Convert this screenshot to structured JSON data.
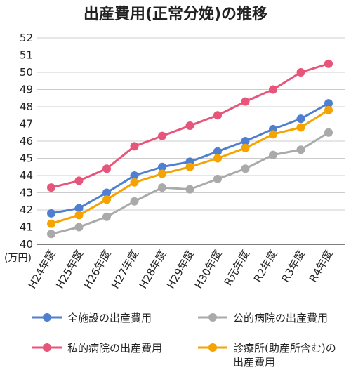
{
  "chart_data": {
    "type": "line",
    "title": "出産費用(正常分娩)の推移",
    "unit_label": "(万円)",
    "ylim": [
      40,
      52
    ],
    "yticks": [
      40,
      41,
      42,
      43,
      44,
      45,
      46,
      47,
      48,
      49,
      50,
      51,
      52
    ],
    "grid": true,
    "legend_position": "bottom",
    "categories": [
      "H24年度",
      "H25年度",
      "H26年度",
      "H27年度",
      "H28年度",
      "H29年度",
      "H30年度",
      "R元年度",
      "R2年度",
      "R3年度",
      "R4年度"
    ],
    "series": [
      {
        "name": "全施設の出産費用",
        "color": "#4f7fd0",
        "values": [
          41.8,
          42.1,
          43.0,
          44.0,
          44.5,
          44.8,
          45.4,
          46.0,
          46.7,
          47.3,
          48.2
        ]
      },
      {
        "name": "公的病院の出産費用",
        "color": "#aaaaaa",
        "values": [
          40.6,
          41.0,
          41.6,
          42.5,
          43.3,
          43.2,
          43.8,
          44.4,
          45.2,
          45.5,
          46.5
        ]
      },
      {
        "name": "私的病院の出産費用",
        "color": "#e8557a",
        "values": [
          43.3,
          43.7,
          44.4,
          45.7,
          46.3,
          46.9,
          47.5,
          48.3,
          49.0,
          50.0,
          50.5
        ]
      },
      {
        "name": "診療所(助産所含む)の出産費用",
        "color": "#f4a300",
        "values": [
          41.2,
          41.7,
          42.6,
          43.6,
          44.1,
          44.5,
          45.0,
          45.6,
          46.4,
          46.8,
          47.8
        ]
      }
    ],
    "legend_lines": [
      [
        "全施設の出産費用"
      ],
      [
        "公的病院の出産費用"
      ],
      [
        "私的病院の出産費用"
      ],
      [
        "診療所(助産所含む)の",
        "出産費用"
      ]
    ]
  }
}
